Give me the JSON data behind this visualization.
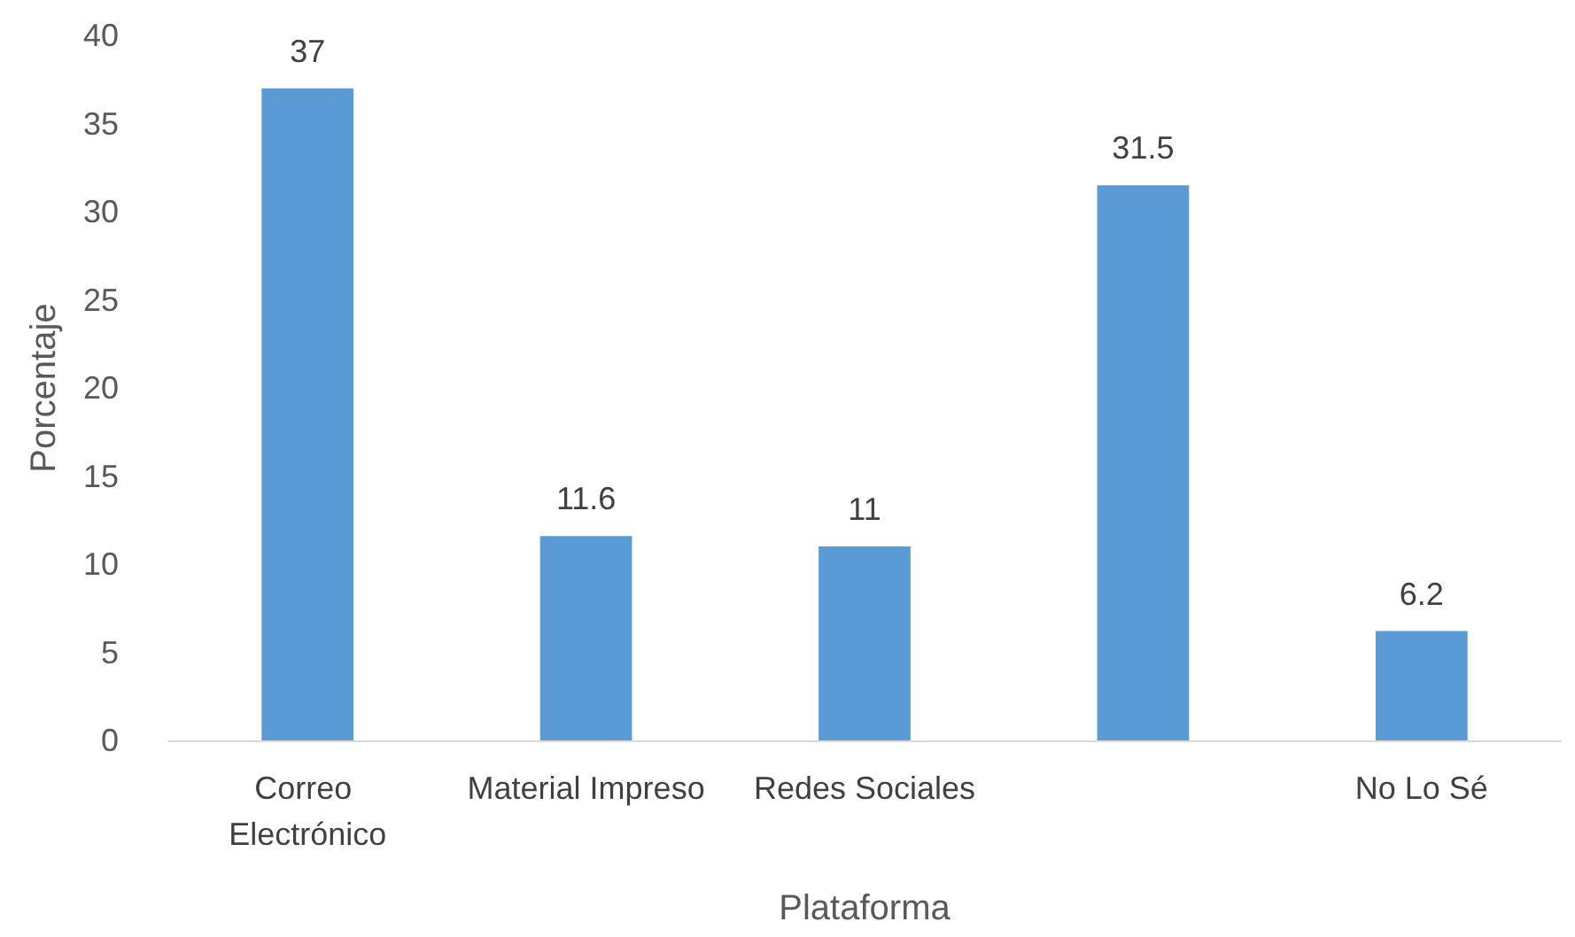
{
  "chart_data": {
    "type": "bar",
    "xlabel": "Plataforma",
    "ylabel": "Porcentaje",
    "categories": [
      "Correo Electrónico",
      "Material Impreso",
      "Redes Sociales",
      null,
      "No Lo Sé"
    ],
    "values": [
      37,
      11.6,
      11,
      31.5,
      6.2
    ],
    "color": "#5b9bd5",
    "ylim": [
      0,
      40
    ],
    "yticks": [
      0,
      5,
      10,
      15,
      20,
      25,
      30,
      35,
      40
    ],
    "grid": false,
    "data_labels": true
  }
}
